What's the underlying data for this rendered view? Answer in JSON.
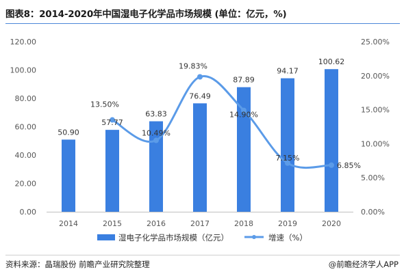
{
  "title": "图表8：2014-2020年中国湿电子化学品市场规模 (单位：亿元，%)",
  "source": "资料来源：晶瑞股份 前瞻产业研究院整理",
  "brand": "@前瞻经济学人APP",
  "colors": {
    "bar": "#3a7fe0",
    "line": "#5b9be8",
    "rule": "#4a86d8",
    "grid": "#e6e6e6"
  },
  "chart_data": {
    "type": "bar",
    "categories": [
      "2014",
      "2015",
      "2016",
      "2017",
      "2018",
      "2019",
      "2020"
    ],
    "left_axis": {
      "ylim": [
        0,
        120
      ],
      "ticks": [
        "0.00",
        "20.00",
        "40.00",
        "60.00",
        "80.00",
        "100.00",
        "120.00"
      ]
    },
    "right_axis": {
      "ylim": [
        0,
        25
      ],
      "ticks": [
        "0.00%",
        "5.00%",
        "10.00%",
        "15.00%",
        "20.00%",
        "25.00%"
      ]
    },
    "series": [
      {
        "name": "湿电子化学品市场规模（亿元）",
        "type": "bar",
        "axis": "left",
        "values": [
          50.9,
          57.77,
          63.83,
          76.49,
          87.89,
          94.17,
          100.62
        ],
        "labels": [
          "50.90",
          "57.77",
          "63.83",
          "76.49",
          "87.89",
          "94.17",
          "100.62"
        ]
      },
      {
        "name": "增速（%）",
        "type": "line",
        "axis": "right",
        "smooth": true,
        "values": [
          null,
          13.5,
          10.49,
          19.83,
          14.9,
          7.15,
          6.85
        ],
        "labels": [
          "",
          "13.50%",
          "10.49%",
          "19.83%",
          "14.90%",
          "7.15%",
          "6.85%"
        ]
      }
    ],
    "legend": "bottom",
    "grid": false
  }
}
